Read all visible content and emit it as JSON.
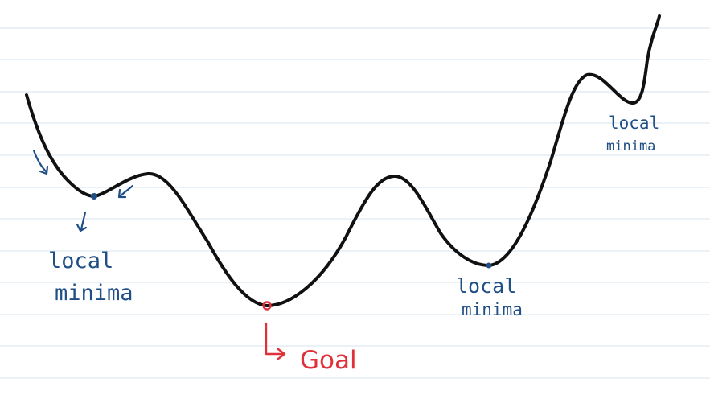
{
  "diagram": {
    "title": "",
    "colors": {
      "ink": "#111111",
      "annotation": "#1f4f86",
      "goal": "#e0303a",
      "ruled_line": "#d6e6f2"
    },
    "labels": {
      "left_minimum": [
        "local",
        "minima"
      ],
      "center_minimum": "Goal",
      "right_minimum": [
        "local",
        "minima"
      ],
      "top_right_minimum": [
        "local",
        "minima"
      ]
    }
  }
}
